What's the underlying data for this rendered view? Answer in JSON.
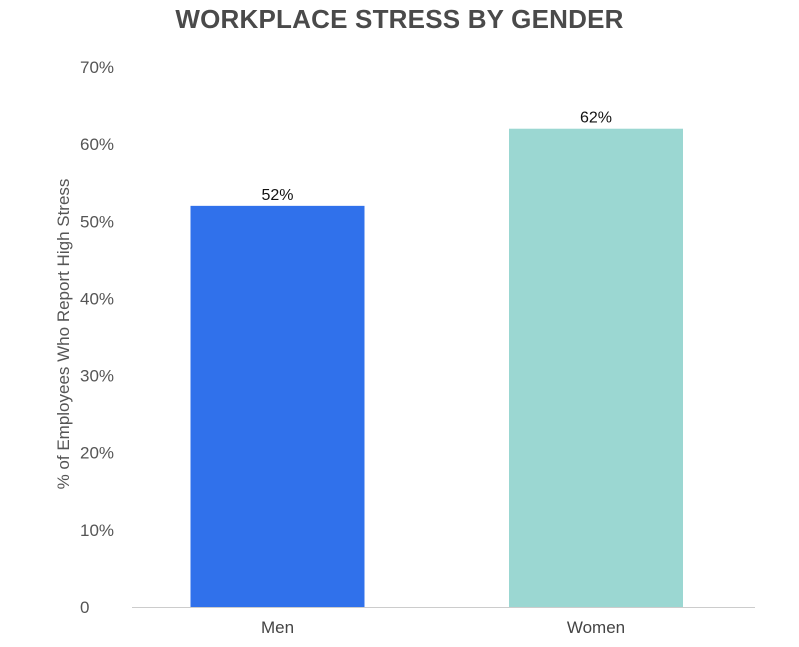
{
  "chart_data": {
    "type": "bar",
    "title": "WORKPLACE STRESS BY GENDER",
    "xlabel": "",
    "ylabel": "% of Employees Who Report High Stress",
    "categories": [
      "Men",
      "Women"
    ],
    "values": [
      52,
      62
    ],
    "data_labels": [
      "52%",
      "62%"
    ],
    "colors": [
      "#3071eb",
      "#9bd7d2"
    ],
    "ylim": [
      0,
      70
    ],
    "y_ticks": [
      0,
      10,
      20,
      30,
      40,
      50,
      60,
      70
    ],
    "y_tick_labels": [
      "0",
      "10%",
      "20%",
      "30%",
      "40%",
      "50%",
      "60%",
      "70%"
    ],
    "grid": false,
    "legend": "none"
  }
}
